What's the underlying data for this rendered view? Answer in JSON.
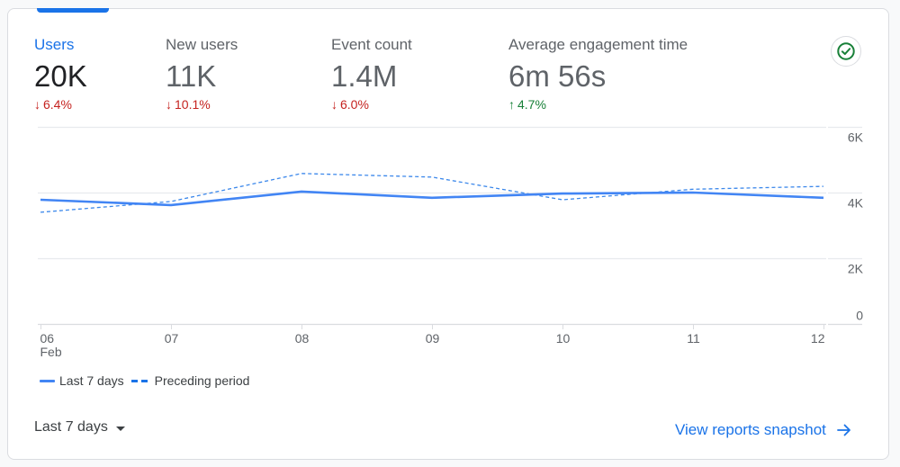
{
  "metrics": [
    {
      "label": "Users",
      "value": "20K",
      "delta": "6.4%",
      "direction": "down",
      "active": true
    },
    {
      "label": "New users",
      "value": "11K",
      "delta": "10.1%",
      "direction": "down",
      "active": false
    },
    {
      "label": "Event count",
      "value": "1.4M",
      "delta": "6.0%",
      "direction": "down",
      "active": false
    },
    {
      "label": "Average engagement time",
      "value": "6m 56s",
      "delta": "4.7%",
      "direction": "up",
      "active": false
    }
  ],
  "status_icon": "check-circle-icon",
  "arrows": {
    "down": "↓",
    "up": "↑"
  },
  "colors": {
    "accent": "#1a73e8",
    "series_current": "#4285f4",
    "series_previous": "#1a73e8",
    "down": "#c5221f",
    "up": "#188038",
    "check": "#188038"
  },
  "chart_data": {
    "type": "line",
    "title": "",
    "xlabel": "",
    "ylabel": "",
    "categories": [
      "06",
      "07",
      "08",
      "09",
      "10",
      "11",
      "12"
    ],
    "category_sublabels": [
      "Feb",
      "",
      "",
      "",
      "",
      "",
      ""
    ],
    "ylim": [
      0,
      6000
    ],
    "yticks": [
      0,
      2000,
      4000,
      6000
    ],
    "ytick_labels": [
      "0",
      "2K",
      "4K",
      "6K"
    ],
    "y_axis_position": "right",
    "grid": true,
    "legend_position": "bottom-left",
    "series": [
      {
        "name": "Last 7 days",
        "style": "solid",
        "values": [
          3780,
          3620,
          4030,
          3840,
          3970,
          4000,
          3840
        ]
      },
      {
        "name": "Preceding period",
        "style": "dashed",
        "values": [
          3400,
          3730,
          4580,
          4470,
          3780,
          4100,
          4190
        ]
      }
    ]
  },
  "legend": {
    "current": "Last 7 days",
    "previous": "Preceding period"
  },
  "footer": {
    "range_label": "Last 7 days",
    "link_label": "View reports snapshot"
  }
}
